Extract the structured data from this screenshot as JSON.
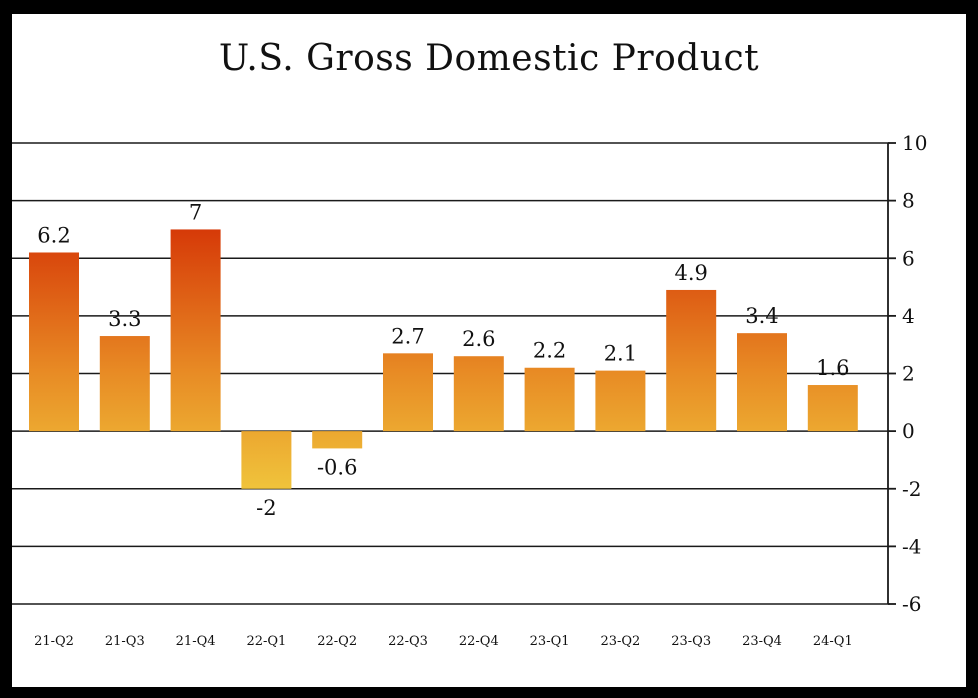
{
  "chart_data": {
    "type": "bar",
    "title": "U.S. Gross Domestic Product",
    "xlabel": "",
    "ylabel": "",
    "categories": [
      "21-Q2",
      "21-Q3",
      "21-Q4",
      "22-Q1",
      "22-Q2",
      "22-Q3",
      "22-Q4",
      "23-Q1",
      "23-Q2",
      "23-Q3",
      "23-Q4",
      "24-Q1"
    ],
    "values": [
      6.2,
      3.3,
      7,
      -2,
      -0.6,
      2.7,
      2.6,
      2.2,
      2.1,
      4.9,
      3.4,
      1.6
    ],
    "data_labels": [
      "6.2",
      "3.3",
      "7",
      "-2",
      "-0.6",
      "2.7",
      "2.6",
      "2.2",
      "2.1",
      "4.9",
      "3.4",
      "1.6"
    ],
    "y_ticks": [
      "10",
      "8",
      "6",
      "4",
      "2",
      "0",
      "-2",
      "-4",
      "-6"
    ],
    "ylim": [
      -6,
      10
    ],
    "y_axis_side": "right",
    "grid": true,
    "legend": "none",
    "colors": {
      "bar_high": "#d63a08",
      "bar_mid": "#e89028",
      "bar_low": "#f0c23a",
      "frame": "#000000",
      "background": "#ffffff"
    }
  }
}
